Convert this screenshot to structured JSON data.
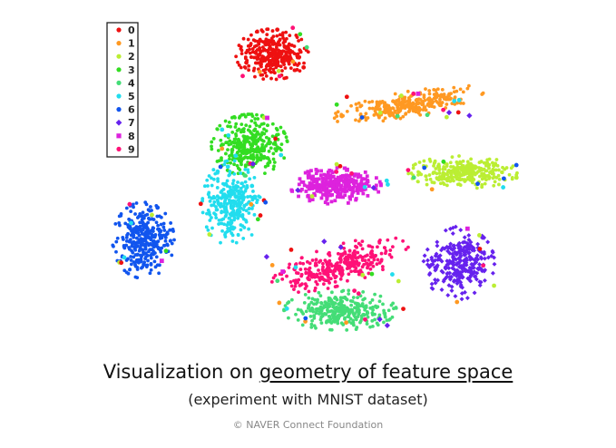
{
  "chart_data": {
    "type": "scatter",
    "title": "",
    "xlabel": "",
    "ylabel": "",
    "grid": false,
    "axes_visible": false,
    "legend_position": "top-left",
    "series": [
      {
        "name": "0",
        "color": "#ee1111",
        "marker": "circle",
        "cluster": {
          "cx": 300,
          "cy": 60,
          "rx": 40,
          "ry": 28,
          "n": 320
        }
      },
      {
        "name": "1",
        "color": "#ff9922",
        "marker": "circle",
        "cluster": {
          "cx": 450,
          "cy": 115,
          "rx": 85,
          "ry": 14,
          "n": 300,
          "tilt": -0.18
        }
      },
      {
        "name": "2",
        "color": "#bbee33",
        "marker": "circle",
        "cluster": {
          "cx": 510,
          "cy": 190,
          "rx": 60,
          "ry": 18,
          "n": 300
        }
      },
      {
        "name": "3",
        "color": "#33dd22",
        "marker": "circle",
        "cluster": {
          "cx": 275,
          "cy": 160,
          "rx": 42,
          "ry": 34,
          "n": 320
        }
      },
      {
        "name": "4",
        "color": "#44dd77",
        "marker": "circle",
        "cluster": {
          "cx": 375,
          "cy": 342,
          "rx": 62,
          "ry": 22,
          "n": 300
        }
      },
      {
        "name": "5",
        "color": "#22ddee",
        "marker": "circle",
        "cluster": {
          "cx": 255,
          "cy": 225,
          "rx": 32,
          "ry": 48,
          "n": 280
        }
      },
      {
        "name": "6",
        "color": "#1155ee",
        "marker": "circle",
        "cluster": {
          "cx": 158,
          "cy": 265,
          "rx": 34,
          "ry": 42,
          "n": 320
        }
      },
      {
        "name": "7",
        "color": "#6622ee",
        "marker": "diamond",
        "cluster": {
          "cx": 505,
          "cy": 290,
          "rx": 40,
          "ry": 40,
          "n": 280
        }
      },
      {
        "name": "8",
        "color": "#dd22dd",
        "marker": "square",
        "cluster": {
          "cx": 370,
          "cy": 205,
          "rx": 50,
          "ry": 20,
          "n": 280
        }
      },
      {
        "name": "9",
        "color": "#ff1177",
        "marker": "circle",
        "cluster": {
          "cx": 375,
          "cy": 292,
          "rx": 78,
          "ry": 22,
          "n": 320,
          "tilt": -0.28
        }
      }
    ]
  },
  "caption": {
    "title_pre": "Visualization on ",
    "title_link": "geometry of feature space",
    "subtitle": "(experiment with MNIST dataset)"
  },
  "footer": {
    "copyright": "©  NAVER Connect Foundation"
  }
}
